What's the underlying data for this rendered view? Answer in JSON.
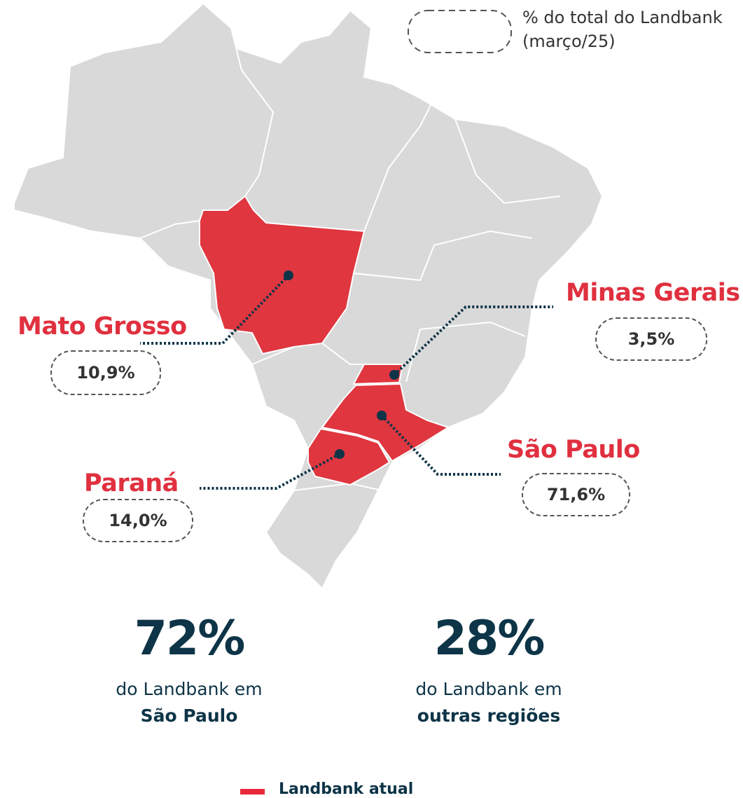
{
  "key_box": {
    "label": "% do total do Landbank (março/25)"
  },
  "states": [
    {
      "name": "Mato Grosso",
      "share": "10,9%"
    },
    {
      "name": "Minas Gerais",
      "share": "3,5%"
    },
    {
      "name": "São Paulo",
      "share": "71,6%"
    },
    {
      "name": "Paraná",
      "share": "14,0%"
    }
  ],
  "stats": [
    {
      "value": "72%",
      "text": "do Landbank em",
      "region": "São Paulo"
    },
    {
      "value": "28%",
      "text": "do Landbank em",
      "region": "outras regiões"
    }
  ],
  "legend": {
    "label": "Landbank atual"
  }
}
